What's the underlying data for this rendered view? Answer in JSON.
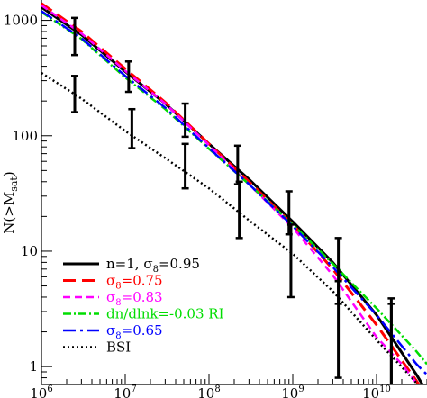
{
  "chart_data": {
    "type": "line",
    "xscale": "log",
    "yscale": "log",
    "xlim": [
      1000000,
      40000000000
    ],
    "ylim": [
      0.7,
      1500
    ],
    "xlabel": "",
    "ylabel": {
      "main": "N(>M",
      "sub": "sat",
      "close": ")"
    },
    "x_ticks": [
      {
        "value": 1000000,
        "base": "10",
        "exp": "6"
      },
      {
        "value": 10000000,
        "base": "10",
        "exp": "7"
      },
      {
        "value": 100000000,
        "base": "10",
        "exp": "8"
      },
      {
        "value": 1000000000,
        "base": "10",
        "exp": "9"
      },
      {
        "value": 10000000000,
        "base": "10",
        "exp": "10"
      }
    ],
    "y_ticks": [
      {
        "value": 1,
        "label": "1"
      },
      {
        "value": 10,
        "label": "10"
      },
      {
        "value": 100,
        "label": "100"
      },
      {
        "value": 1000,
        "label": "1000"
      }
    ],
    "legend_position": "bottom-left",
    "series": [
      {
        "key": "n1",
        "label_parts": [
          {
            "text": "n=1,  ",
            "style": "normal"
          },
          {
            "text": "σ",
            "style": "normal"
          },
          {
            "text": "8",
            "style": "sub"
          },
          {
            "text": "=0.95",
            "style": "normal"
          }
        ],
        "color": "#000000",
        "dash": "",
        "width": 3,
        "x": [
          1000000,
          3000000,
          10000000,
          30000000,
          100000000,
          300000000,
          1000000000,
          3000000000,
          10000000000,
          30000000000,
          40000000000
        ],
        "y": [
          1300,
          750,
          360,
          190,
          85,
          42,
          18,
          8,
          2.8,
          0.85,
          0.6
        ]
      },
      {
        "key": "s075",
        "label_parts": [
          {
            "text": "σ",
            "style": "normal"
          },
          {
            "text": "8",
            "style": "sub"
          },
          {
            "text": "=0.75",
            "style": "normal"
          }
        ],
        "color": "#ff0000",
        "dash": "14,7",
        "width": 3,
        "x": [
          1000000,
          3000000,
          10000000,
          30000000,
          100000000,
          300000000,
          1000000000,
          3000000000,
          10000000000,
          30000000000,
          40000000000
        ],
        "y": [
          1400,
          800,
          380,
          195,
          85,
          40,
          17,
          7,
          2.3,
          0.75,
          0.55
        ]
      },
      {
        "key": "s083",
        "label_parts": [
          {
            "text": "σ",
            "style": "normal"
          },
          {
            "text": "8",
            "style": "sub"
          },
          {
            "text": "=0.83",
            "style": "normal"
          }
        ],
        "color": "#ff00ff",
        "dash": "8,5",
        "width": 2.5,
        "x": [
          1000000,
          3000000,
          10000000,
          30000000,
          100000000,
          300000000,
          1000000000,
          3000000000,
          10000000000,
          20000000000,
          40000000000
        ],
        "y": [
          1350,
          770,
          365,
          190,
          83,
          38,
          16,
          6.2,
          1.8,
          1.05,
          0.55
        ]
      },
      {
        "key": "dndlnk",
        "label_parts": [
          {
            "text": "dn/dlnk=-0.03 RI",
            "style": "normal"
          }
        ],
        "color": "#00dd00",
        "dash": "9,3,2,3",
        "width": 2.5,
        "x": [
          1000000,
          3000000,
          10000000,
          30000000,
          100000000,
          300000000,
          1000000000,
          3000000000,
          10000000000,
          30000000000,
          40000000000
        ],
        "y": [
          1180,
          690,
          320,
          170,
          77,
          38,
          17,
          7.8,
          3.2,
          1.35,
          1.05
        ]
      },
      {
        "key": "s065",
        "label_parts": [
          {
            "text": "σ",
            "style": "normal"
          },
          {
            "text": "8",
            "style": "sub"
          },
          {
            "text": "=0.65",
            "style": "normal"
          }
        ],
        "color": "#0000ff",
        "dash": "14,5,3,5",
        "width": 2.5,
        "x": [
          1000000,
          3000000,
          10000000,
          30000000,
          100000000,
          300000000,
          1000000000,
          3000000000,
          10000000000,
          30000000000,
          40000000000
        ],
        "y": [
          1200,
          700,
          330,
          175,
          78,
          38,
          16.5,
          7.3,
          2.8,
          1.05,
          0.85
        ]
      },
      {
        "key": "bsi",
        "label_parts": [
          {
            "text": "BSI",
            "style": "normal"
          }
        ],
        "color": "#000000",
        "dash": "2,3",
        "width": 2.5,
        "x": [
          1000000,
          3000000,
          10000000,
          30000000,
          100000000,
          300000000,
          1000000000,
          3000000000,
          10000000000,
          30000000000
        ],
        "y": [
          350,
          210,
          110,
          64,
          35,
          18.5,
          9.5,
          4.5,
          1.7,
          0.72
        ]
      }
    ],
    "error_points": {
      "color": "#000000",
      "x": [
        2500000,
        5300000,
        11000000,
        24000000,
        52000000,
        110000000,
        240000000,
        500000000,
        1000000000,
        3500000000,
        15000000000
      ],
      "y": [
        1,
        1,
        1,
        1,
        1,
        1,
        1,
        1,
        1,
        1,
        1
      ],
      "points": [
        {
          "x": 2500000,
          "y": 750,
          "lo": 500,
          "hi": 1050
        },
        {
          "x": 2500000,
          "y": 240,
          "lo": 160,
          "hi": 330
        },
        {
          "x": 11000000,
          "y": 330,
          "lo": 240,
          "hi": 440
        },
        {
          "x": 12000000,
          "y": 120,
          "lo": 78,
          "hi": 170
        },
        {
          "x": 52000000,
          "y": 140,
          "lo": 98,
          "hi": 190
        },
        {
          "x": 52000000,
          "y": 57,
          "lo": 35,
          "hi": 85
        },
        {
          "x": 220000000,
          "y": 58,
          "lo": 38,
          "hi": 82
        },
        {
          "x": 230000000,
          "y": 24,
          "lo": 13,
          "hi": 40
        },
        {
          "x": 900000000,
          "y": 23,
          "lo": 14,
          "hi": 33
        },
        {
          "x": 950000000,
          "y": 9,
          "lo": 4,
          "hi": 17
        },
        {
          "x": 3500000000,
          "y": 7.5,
          "lo": 3.5,
          "hi": 13
        },
        {
          "x": 3500000000,
          "y": 2.5,
          "lo": 0.8,
          "hi": 5.5
        },
        {
          "x": 15000000000,
          "y": 1.7,
          "lo": 0.55,
          "hi": 3.9
        },
        {
          "x": 15000000000,
          "y": 1,
          "lo": 0.5,
          "hi": 3.5
        }
      ]
    }
  }
}
